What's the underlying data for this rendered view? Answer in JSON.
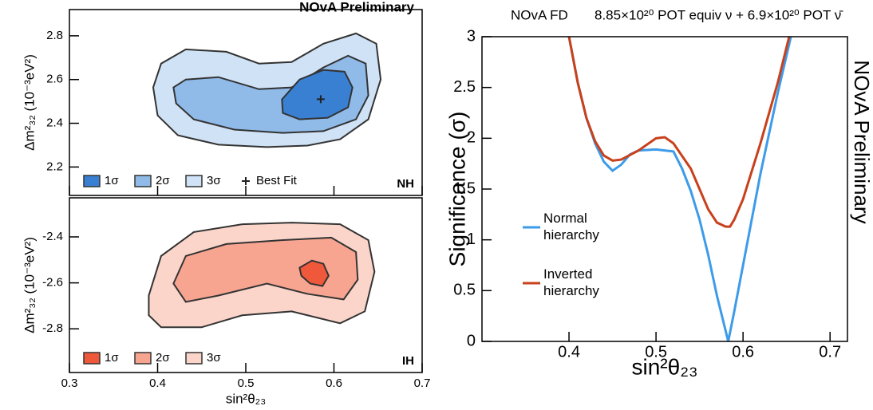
{
  "chart_data": [
    {
      "type": "contour",
      "annotation": "NOvA Preliminary",
      "panel_label": "NH",
      "panel_label_color": "#1f6fc9",
      "ylabel": "Δm²₃₂ (10⁻³eV²)",
      "xlim": [
        0.3,
        0.7
      ],
      "xticks": [
        0.3,
        0.4,
        0.5,
        0.6,
        0.7
      ],
      "x_tick_labels": false,
      "ylim": [
        2.07,
        2.92
      ],
      "yticks": [
        2.2,
        2.4,
        2.6,
        2.8
      ],
      "series": [
        {
          "name": "1σ",
          "color": "#3a80d2",
          "x": [
            0.541,
            0.561,
            0.588,
            0.612,
            0.621,
            0.616,
            0.593,
            0.561,
            0.542
          ],
          "y": [
            2.509,
            2.6,
            2.644,
            2.636,
            2.564,
            2.473,
            2.425,
            2.418,
            2.447
          ]
        },
        {
          "name": "2σ",
          "color": "#90bbe9",
          "x": [
            0.418,
            0.432,
            0.469,
            0.515,
            0.552,
            0.588,
            0.616,
            0.636,
            0.639,
            0.625,
            0.588,
            0.542,
            0.487,
            0.441,
            0.421
          ],
          "y": [
            2.564,
            2.6,
            2.611,
            2.556,
            2.564,
            2.655,
            2.709,
            2.673,
            2.527,
            2.418,
            2.364,
            2.356,
            2.371,
            2.418,
            2.491
          ]
        },
        {
          "name": "3σ",
          "color": "#d0e2f6",
          "x": [
            0.395,
            0.404,
            0.432,
            0.478,
            0.515,
            0.552,
            0.588,
            0.625,
            0.648,
            0.653,
            0.639,
            0.607,
            0.57,
            0.524,
            0.469,
            0.423,
            0.4
          ],
          "y": [
            2.564,
            2.673,
            2.738,
            2.727,
            2.673,
            2.68,
            2.764,
            2.811,
            2.764,
            2.6,
            2.418,
            2.327,
            2.298,
            2.291,
            2.302,
            2.345,
            2.436
          ]
        }
      ],
      "marker": {
        "name": "Best Fit",
        "x": 0.585,
        "y": 2.51
      }
    },
    {
      "type": "contour",
      "panel_label": "IH",
      "panel_label_color": "#c8401c",
      "ylabel": "Δm²₃₂ (10⁻³eV²)",
      "xlabel": "sin²θ₂₃",
      "xlim": [
        0.3,
        0.7
      ],
      "xticks": [
        0.3,
        0.4,
        0.5,
        0.6,
        0.7
      ],
      "x_tick_labels": true,
      "ylim": [
        -2.99,
        -2.23
      ],
      "yticks": [
        -2.8,
        -2.6,
        -2.4
      ],
      "series": [
        {
          "name": "1σ",
          "color": "#f0583b",
          "x": [
            0.561,
            0.575,
            0.588,
            0.594,
            0.587,
            0.573,
            0.563
          ],
          "y": [
            -2.534,
            -2.503,
            -2.517,
            -2.569,
            -2.614,
            -2.603,
            -2.569
          ]
        },
        {
          "name": "2σ",
          "color": "#f7a591",
          "x": [
            0.418,
            0.432,
            0.478,
            0.542,
            0.597,
            0.625,
            0.627,
            0.611,
            0.57,
            0.524,
            0.469,
            0.432
          ],
          "y": [
            -2.603,
            -2.483,
            -2.431,
            -2.414,
            -2.403,
            -2.466,
            -2.586,
            -2.672,
            -2.648,
            -2.603,
            -2.655,
            -2.683
          ]
        },
        {
          "name": "3σ",
          "color": "#fbd5ca",
          "x": [
            0.39,
            0.404,
            0.441,
            0.496,
            0.552,
            0.607,
            0.639,
            0.646,
            0.635,
            0.607,
            0.552,
            0.496,
            0.45,
            0.404,
            0.39
          ],
          "y": [
            -2.655,
            -2.483,
            -2.379,
            -2.345,
            -2.338,
            -2.345,
            -2.414,
            -2.552,
            -2.724,
            -2.776,
            -2.724,
            -2.741,
            -2.793,
            -2.793,
            -2.741
          ]
        }
      ]
    },
    {
      "type": "line",
      "title": "NOvA FD",
      "subtitle": "8.85×10²⁰ POT equiv ν + 6.9×10²⁰ POT ν̄",
      "annotation": "NOvA Preliminary",
      "ylabel": "Significance (σ)",
      "xlabel": "sin²θ₂₃",
      "xlim": [
        0.3,
        0.72
      ],
      "xticks": [
        0.4,
        0.5,
        0.6,
        0.7
      ],
      "x_tick_labels": true,
      "ylim": [
        0,
        3
      ],
      "yticks": [
        0,
        0.5,
        1,
        1.5,
        2,
        2.5,
        3
      ],
      "series": [
        {
          "name": "Normal hierarchy",
          "color": "#3d9be9",
          "x": [
            0.4,
            0.41,
            0.42,
            0.43,
            0.44,
            0.45,
            0.46,
            0.47,
            0.48,
            0.5,
            0.52,
            0.53,
            0.54,
            0.55,
            0.56,
            0.57,
            0.583,
            0.59,
            0.6,
            0.62,
            0.64,
            0.655
          ],
          "values": [
            3.0,
            2.55,
            2.2,
            1.95,
            1.77,
            1.68,
            1.74,
            1.84,
            1.88,
            1.89,
            1.87,
            1.7,
            1.48,
            1.2,
            0.85,
            0.45,
            0.0,
            0.3,
            0.75,
            1.65,
            2.45,
            3.0
          ]
        },
        {
          "name": "Inverted hierarchy",
          "color": "#c8401c",
          "x": [
            0.4,
            0.41,
            0.42,
            0.43,
            0.44,
            0.45,
            0.46,
            0.48,
            0.5,
            0.51,
            0.52,
            0.54,
            0.56,
            0.57,
            0.58,
            0.585,
            0.59,
            0.6,
            0.62,
            0.64,
            0.653
          ],
          "values": [
            3.0,
            2.55,
            2.2,
            1.97,
            1.83,
            1.78,
            1.79,
            1.88,
            2.0,
            2.01,
            1.95,
            1.7,
            1.3,
            1.17,
            1.13,
            1.13,
            1.2,
            1.4,
            1.95,
            2.55,
            3.0
          ]
        }
      ]
    }
  ]
}
